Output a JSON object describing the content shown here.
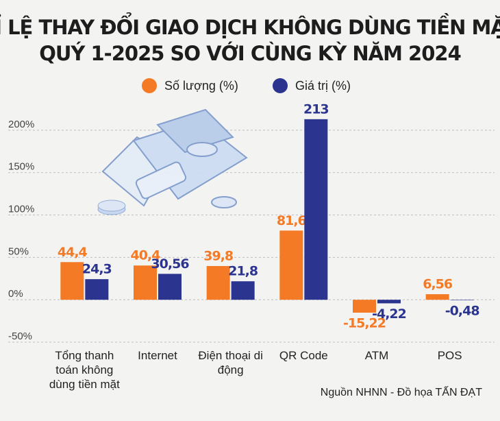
{
  "chart_data": {
    "type": "bar",
    "title": [
      "TỈ LỆ THAY ĐỔI GIAO DỊCH KHÔNG DÙNG TIỀN MẶT",
      "QUÝ 1-2025 SO VỚI CÙNG KỲ NĂM 2024"
    ],
    "categories": [
      "Tổng thanh toán không dùng tiền mặt",
      "Internet",
      "Điện thoại di động",
      "QR Code",
      "ATM",
      "POS"
    ],
    "series": [
      {
        "name": "Số lượng (%)",
        "color": "#f47a25",
        "values": [
          44.4,
          40.4,
          39.8,
          81.6,
          -15.22,
          6.56
        ],
        "value_labels": [
          "44,4",
          "40,4",
          "39,8",
          "81,6",
          "-15,22",
          "6,56"
        ]
      },
      {
        "name": "Giá trị (%)",
        "color": "#2b3590",
        "values": [
          24.3,
          30.56,
          21.8,
          213,
          -4.22,
          -0.48
        ],
        "value_labels": [
          "24,3",
          "30,56",
          "21,8",
          "213",
          "-4,22",
          "-0,48"
        ]
      }
    ],
    "ylim": [
      -50,
      225
    ],
    "yticks": [
      {
        "value": -50,
        "label": "-50%"
      },
      {
        "value": 0,
        "label": "0%"
      },
      {
        "value": 50,
        "label": "50%"
      },
      {
        "value": 100,
        "label": "100%"
      },
      {
        "value": 150,
        "label": "150%"
      },
      {
        "value": 200,
        "label": "200%"
      }
    ],
    "grid": true,
    "source": "Nguồn NHNN - Đồ họa TẤN ĐẠT"
  }
}
